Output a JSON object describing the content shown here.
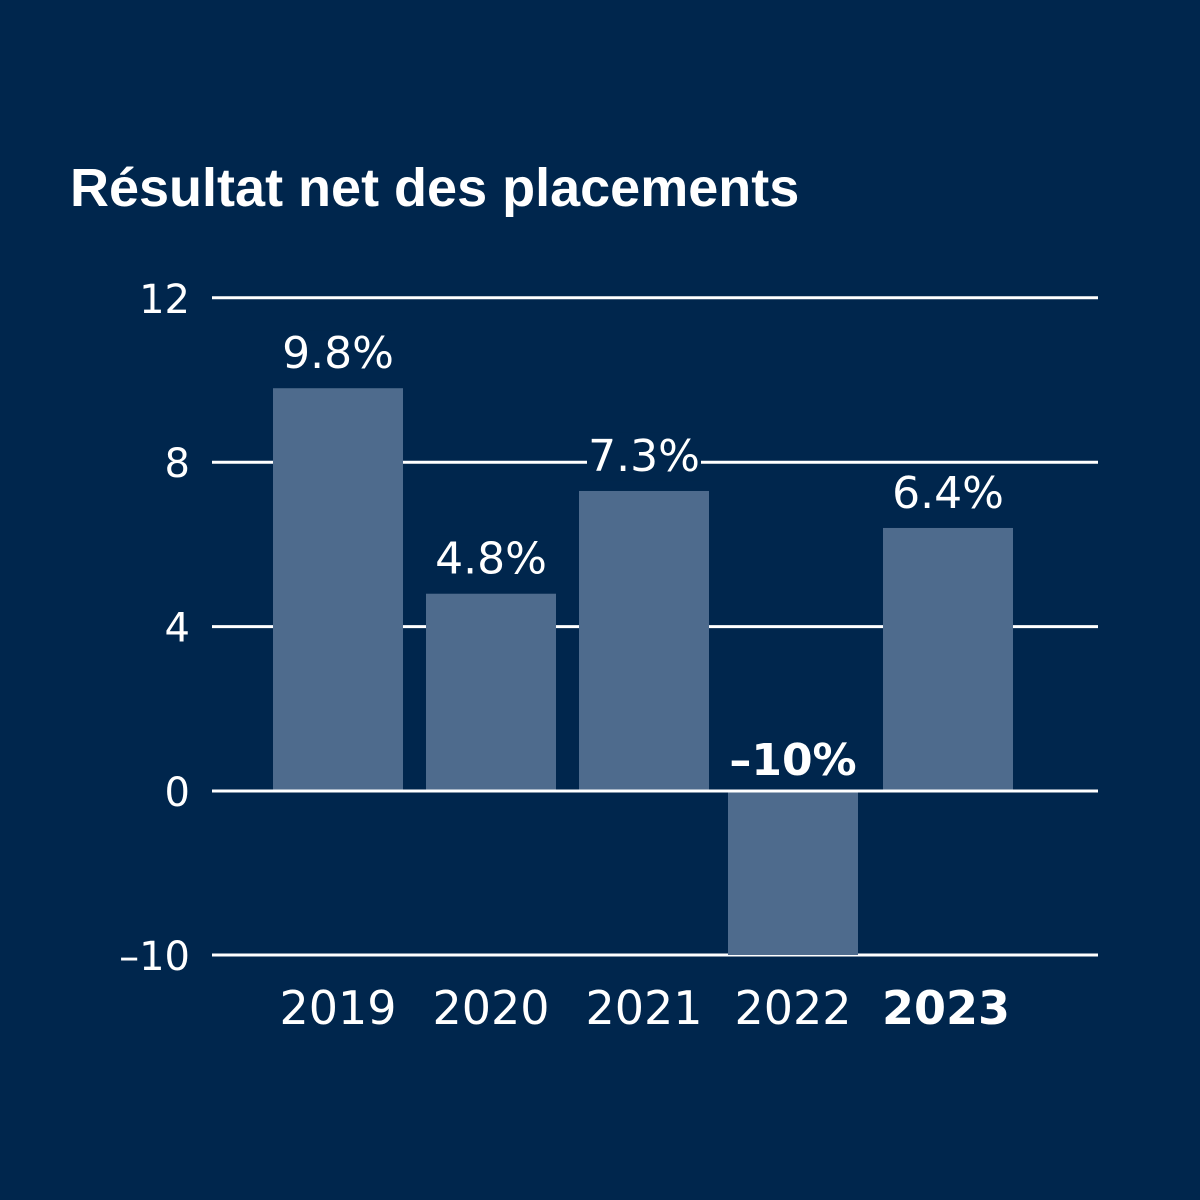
{
  "colors": {
    "background": "#00264d",
    "bar": "#4e6b8d",
    "grid": "#ffffff",
    "text": "#ffffff"
  },
  "chart_data": {
    "type": "bar",
    "title": "Résultat net des placements",
    "xlabel": "",
    "ylabel": "",
    "categories": [
      "2019",
      "2020",
      "2021",
      "2022",
      "2023"
    ],
    "highlight_category": "2023",
    "values": [
      9.8,
      4.8,
      7.3,
      -10,
      6.4
    ],
    "data_labels": [
      "9.8%",
      "4.8%",
      "7.3%",
      "–10%",
      "6.4%"
    ],
    "y_ticks": [
      {
        "value": 12,
        "label": "12"
      },
      {
        "value": 8,
        "label": "8"
      },
      {
        "value": 4,
        "label": "4"
      },
      {
        "value": 0,
        "label": "0"
      },
      {
        "value": -10,
        "label": "–10"
      }
    ],
    "axis_note": "broken scale: 0 to –10 drawn with same spacing as 0 to 4",
    "grid": true,
    "legend": "none"
  }
}
